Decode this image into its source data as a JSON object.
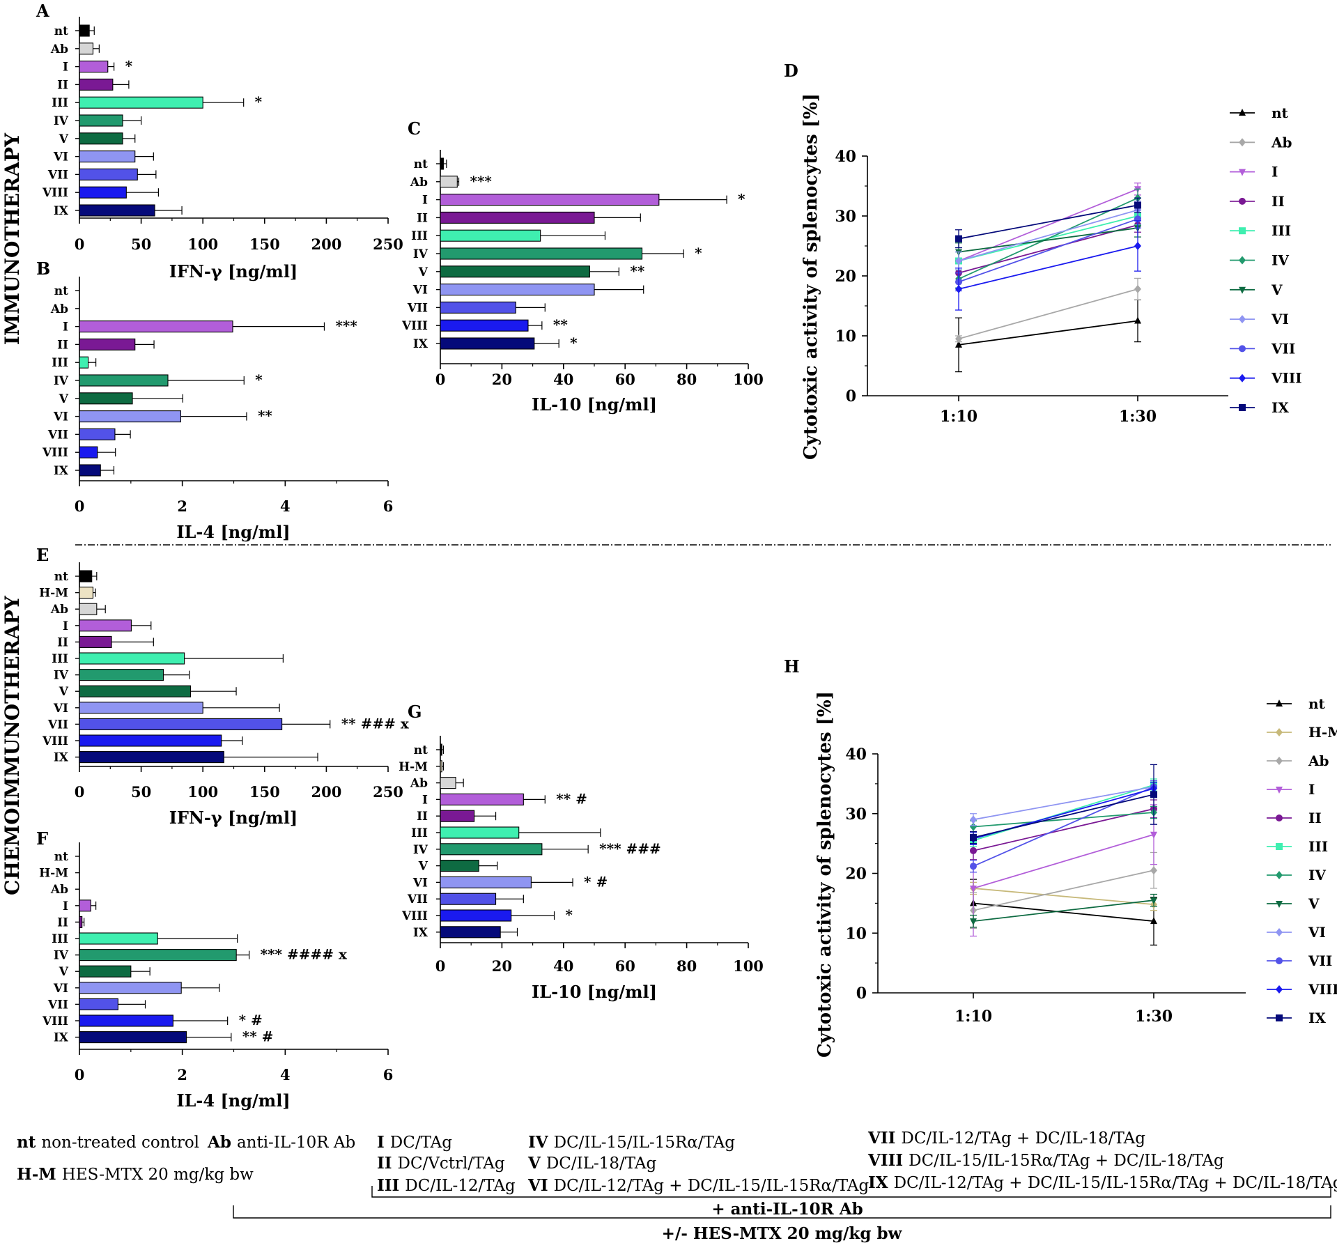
{
  "figure": {
    "section_labels": [
      "IMMUNOTHERAPY",
      "CHEMOIMMUNOTHERAPY"
    ],
    "legend": {
      "columns": [
        [
          {
            "code": "nt",
            "text": "non-treated control"
          },
          {
            "code": "H-M",
            "text": "HES-MTX 20 mg/kg bw"
          }
        ],
        [
          {
            "code": "Ab",
            "text": "anti-IL-10R  Ab"
          }
        ],
        [
          {
            "code": "I",
            "text": "DC/TAg"
          },
          {
            "code": "II",
            "text": "DC/Vctrl/TAg"
          },
          {
            "code": "III",
            "text": "DC/IL-12/TAg"
          }
        ],
        [
          {
            "code": "IV",
            "text": "DC/IL-15/IL-15Rα/TAg"
          },
          {
            "code": "V",
            "text": "DC/IL-18/TAg"
          },
          {
            "code": "VI",
            "text": "DC/IL-12/TAg + DC/IL-15/IL-15Rα/TAg"
          }
        ],
        [
          {
            "code": "VII",
            "text": "DC/IL-12/TAg + DC/IL-18/TAg"
          },
          {
            "code": "VIII",
            "text": "DC/IL-15/IL-15Rα/TAg + DC/IL-18/TAg"
          },
          {
            "code": "IX",
            "text": "DC/IL-12/TAg + DC/IL-15/IL-15Rα/TAg + DC/IL-18/TAg"
          }
        ]
      ],
      "bracket_labels": [
        "+ anti-IL-10R Ab",
        "+/- HES-MTX 20 mg/kg bw"
      ]
    }
  },
  "colors": {
    "nt": "#000000",
    "H-M": "#ede3c4",
    "H-M_line": "#c7b97a",
    "Ab": "#d6d6d6",
    "Ab_line": "#a8a8a8",
    "I": "#b25ed9",
    "II": "#7a1994",
    "III": "#3fefb0",
    "IV": "#229a6e",
    "V": "#0e6b42",
    "VI": "#8f95f2",
    "VII": "#5252e8",
    "VIII": "#1a1aef",
    "IX": "#050a7a"
  },
  "chart_data": [
    {
      "id": "A",
      "type": "bar",
      "orientation": "horizontal",
      "categories": [
        "nt",
        "Ab",
        "I",
        "II",
        "III",
        "IV",
        "V",
        "VI",
        "VII",
        "VIII",
        "IX"
      ],
      "values": [
        8,
        11,
        23,
        27,
        100,
        35,
        35,
        45,
        47,
        38,
        61
      ],
      "errors": [
        4,
        5,
        5,
        13,
        33,
        15,
        10,
        15,
        15,
        26,
        22
      ],
      "annotations": [
        "",
        "",
        "*",
        "",
        "*",
        "",
        "",
        "",
        "",
        "",
        ""
      ],
      "xlabel": "IFN-γ [ng/ml]",
      "xlim": [
        0,
        250
      ],
      "xticks": [
        0,
        50,
        100,
        150,
        200,
        250
      ]
    },
    {
      "id": "B",
      "type": "bar",
      "orientation": "horizontal",
      "categories": [
        "nt",
        "Ab",
        "I",
        "II",
        "III",
        "IV",
        "V",
        "VI",
        "VII",
        "VIII",
        "IX"
      ],
      "values": [
        0,
        0,
        2.98,
        1.08,
        0.17,
        1.72,
        1.03,
        1.97,
        0.69,
        0.35,
        0.41
      ],
      "errors": [
        0,
        0,
        1.78,
        0.37,
        0.15,
        1.48,
        0.98,
        1.28,
        0.3,
        0.35,
        0.26
      ],
      "annotations": [
        "",
        "",
        "***",
        "",
        "",
        "*",
        "",
        "**",
        "",
        "",
        ""
      ],
      "xlabel": "IL-4 [ng/ml]",
      "xlim": [
        0,
        6
      ],
      "xticks": [
        0,
        2,
        4,
        6
      ]
    },
    {
      "id": "C",
      "type": "bar",
      "orientation": "horizontal",
      "categories": [
        "nt",
        "Ab",
        "I",
        "II",
        "III",
        "IV",
        "V",
        "VI",
        "VII",
        "VIII",
        "IX"
      ],
      "values": [
        1,
        5.5,
        71,
        50,
        32.5,
        65.5,
        48.5,
        50,
        24.5,
        28.5,
        30.5
      ],
      "errors": [
        1,
        0.5,
        22,
        15,
        21,
        13.5,
        9.5,
        16,
        9.5,
        4.5,
        8
      ],
      "annotations": [
        "",
        "***",
        "*",
        "",
        "",
        "*",
        "**",
        "",
        "",
        "**",
        "*"
      ],
      "xlabel": "IL-10 [ng/ml]",
      "xlim": [
        0,
        100
      ],
      "xticks": [
        0,
        20,
        40,
        60,
        80,
        100
      ]
    },
    {
      "id": "D",
      "type": "line",
      "x": [
        "1:10",
        "1:30"
      ],
      "series": [
        {
          "name": "nt",
          "values": [
            8.5,
            12.5
          ],
          "errors": [
            4.5,
            3.5
          ],
          "marker": "triangle-up"
        },
        {
          "name": "Ab",
          "values": [
            9.5,
            17.8
          ],
          "errors": [
            0.5,
            1.8
          ],
          "marker": "diamond"
        },
        {
          "name": "I",
          "values": [
            22.5,
            34.5
          ],
          "errors": [
            1.5,
            1
          ],
          "marker": "triangle-down"
        },
        {
          "name": "II",
          "values": [
            20.5,
            28.5
          ],
          "errors": [
            1.5,
            1.2
          ],
          "marker": "circle"
        },
        {
          "name": "III",
          "values": [
            22.5,
            30
          ],
          "errors": [
            1.5,
            1.5
          ],
          "marker": "square"
        },
        {
          "name": "IV",
          "values": [
            19.5,
            33
          ],
          "errors": [
            1.5,
            1.5
          ],
          "marker": "diamond"
        },
        {
          "name": "V",
          "values": [
            24,
            28
          ],
          "errors": [
            1.5,
            1.5
          ],
          "marker": "triangle-down"
        },
        {
          "name": "VI",
          "values": [
            22.5,
            31
          ],
          "errors": [
            1.5,
            1.5
          ],
          "marker": "diamond"
        },
        {
          "name": "VII",
          "values": [
            19,
            29.5
          ],
          "errors": [
            1.5,
            1.5
          ],
          "marker": "circle"
        },
        {
          "name": "VIII",
          "values": [
            17.8,
            25
          ],
          "errors": [
            3.5,
            4.2
          ],
          "marker": "diamond"
        },
        {
          "name": "IX",
          "values": [
            26.2,
            31.8
          ],
          "errors": [
            1.5,
            1.2
          ],
          "marker": "square"
        }
      ],
      "ylabel": "Cytotoxic activity of splenocytes [%]",
      "ylim": [
        0,
        40
      ],
      "yticks": [
        0,
        10,
        20,
        30,
        40
      ]
    },
    {
      "id": "E",
      "type": "bar",
      "orientation": "horizontal",
      "categories": [
        "nt",
        "H-M",
        "Ab",
        "I",
        "II",
        "III",
        "IV",
        "V",
        "VI",
        "VII",
        "VIII",
        "IX"
      ],
      "values": [
        10,
        11,
        14,
        42,
        26,
        85,
        68,
        90,
        100,
        164,
        115,
        117
      ],
      "errors": [
        4,
        2,
        7,
        16,
        34,
        80,
        21,
        37,
        62,
        39,
        17,
        76
      ],
      "annotations": [
        "",
        "",
        "",
        "",
        "",
        "",
        "",
        "",
        "",
        "** ### x",
        "",
        ""
      ],
      "xlabel": "IFN-γ [ng/ml]",
      "xlim": [
        0,
        250
      ],
      "xticks": [
        0,
        50,
        100,
        150,
        200,
        250
      ]
    },
    {
      "id": "F",
      "type": "bar",
      "orientation": "horizontal",
      "categories": [
        "nt",
        "H-M",
        "Ab",
        "I",
        "II",
        "III",
        "IV",
        "V",
        "VI",
        "VII",
        "VIII",
        "IX"
      ],
      "values": [
        0,
        0,
        0,
        0.22,
        0.05,
        1.52,
        3.05,
        1.0,
        1.98,
        0.75,
        1.82,
        2.08
      ],
      "errors": [
        0,
        0,
        0,
        0.1,
        0.04,
        1.55,
        0.25,
        0.37,
        0.74,
        0.53,
        1.06,
        0.87
      ],
      "annotations": [
        "",
        "",
        "",
        "",
        "",
        "",
        "*** #### x",
        "",
        "",
        "",
        "* #",
        "** #"
      ],
      "xlabel": "IL-4 [ng/ml]",
      "xlim": [
        0,
        6
      ],
      "xticks": [
        0,
        2,
        4,
        6
      ]
    },
    {
      "id": "G",
      "type": "bar",
      "orientation": "horizontal",
      "categories": [
        "nt",
        "H-M",
        "Ab",
        "I",
        "II",
        "III",
        "IV",
        "V",
        "VI",
        "VII",
        "VIII",
        "IX"
      ],
      "values": [
        0.5,
        0.5,
        5,
        27,
        11,
        25.5,
        33,
        12.5,
        29.5,
        18,
        23,
        19.5
      ],
      "errors": [
        0.5,
        0.5,
        2.5,
        7,
        7,
        26.5,
        15,
        6,
        13.5,
        9,
        14,
        5.5
      ],
      "annotations": [
        "",
        "",
        "",
        "** #",
        "",
        "",
        "*** ###",
        "",
        "* #",
        "",
        "*",
        ""
      ],
      "xlabel": "IL-10 [ng/ml]",
      "xlim": [
        0,
        100
      ],
      "xticks": [
        0,
        20,
        40,
        60,
        80,
        100
      ]
    },
    {
      "id": "H",
      "type": "line",
      "x": [
        "1:10",
        "1:30"
      ],
      "series": [
        {
          "name": "nt",
          "values": [
            15,
            12
          ],
          "errors": [
            4,
            4
          ],
          "marker": "triangle-up"
        },
        {
          "name": "H-M",
          "values": [
            17.5,
            14.8
          ],
          "errors": [
            1,
            1
          ],
          "marker": "diamond"
        },
        {
          "name": "Ab",
          "values": [
            13.8,
            20.5
          ],
          "errors": [
            3,
            3
          ],
          "marker": "diamond"
        },
        {
          "name": "I",
          "values": [
            17.5,
            26.5
          ],
          "errors": [
            8,
            5
          ],
          "marker": "triangle-down"
        },
        {
          "name": "II",
          "values": [
            23.8,
            30.8
          ],
          "errors": [
            1.5,
            1.5
          ],
          "marker": "circle"
        },
        {
          "name": "III",
          "values": [
            25.5,
            34.8
          ],
          "errors": [
            1,
            1
          ],
          "marker": "square"
        },
        {
          "name": "IV",
          "values": [
            27.8,
            30.2
          ],
          "errors": [
            1,
            1
          ],
          "marker": "diamond"
        },
        {
          "name": "V",
          "values": [
            12,
            15.5
          ],
          "errors": [
            1,
            1
          ],
          "marker": "triangle-down"
        },
        {
          "name": "VI",
          "values": [
            29,
            34.5
          ],
          "errors": [
            1,
            1
          ],
          "marker": "diamond"
        },
        {
          "name": "VII",
          "values": [
            21.2,
            34.5
          ],
          "errors": [
            1,
            1
          ],
          "marker": "circle"
        },
        {
          "name": "VIII",
          "values": [
            25.8,
            34.2
          ],
          "errors": [
            1,
            1
          ],
          "marker": "diamond"
        },
        {
          "name": "IX",
          "values": [
            26,
            33.2
          ],
          "errors": [
            1,
            5
          ],
          "marker": "square"
        }
      ],
      "ylabel": "Cytotoxic activity of splenocytes [%]",
      "ylim": [
        0,
        40
      ],
      "yticks": [
        0,
        10,
        20,
        30,
        40
      ]
    }
  ]
}
